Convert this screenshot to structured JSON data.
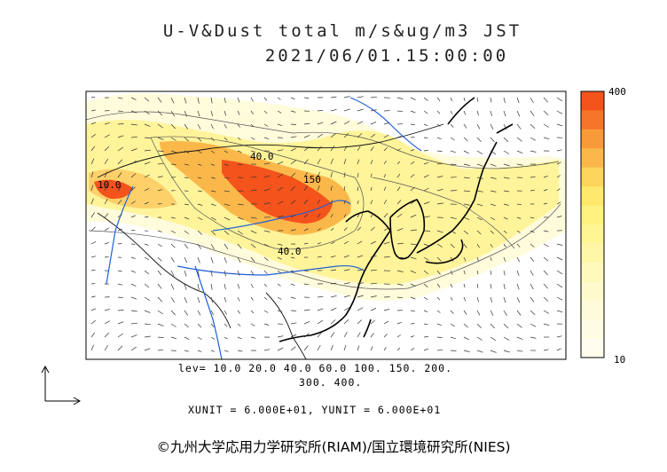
{
  "title": {
    "line1": "U-V&Dust total m/s&ug/m3 JST",
    "line2": "2021/06/01.15:00:00"
  },
  "legend": {
    "max_label": "400",
    "min_label": "10",
    "colors": [
      "#f4531c",
      "#f7752a",
      "#f99a3a",
      "#fbb84a",
      "#fdd55a",
      "#fee96c",
      "#fff27e",
      "#fff592",
      "#fff7a7",
      "#fff9ba",
      "#fffacb",
      "#fffbd8",
      "#fffce4",
      "#fffdee"
    ]
  },
  "levels": {
    "line1": "lev= 10.0 20.0 40.0 60.0 100. 150. 200.",
    "line2": "300. 400."
  },
  "units": "XUNIT = 6.000E+01, YUNIT = 6.000E+01",
  "contour_labels": [
    "40.0",
    "150",
    "40.0",
    "10.0"
  ],
  "footer": "©九州大学応用力学研究所(RIAM)/国立環境研究所(NIES)",
  "colors": {
    "dust_high": "#f4531c",
    "dust_mid": "#fbb84a",
    "dust_low": "#fff49a",
    "dust_trace": "#fffcdc",
    "river": "#1f5fd6",
    "coast": "#000000"
  }
}
